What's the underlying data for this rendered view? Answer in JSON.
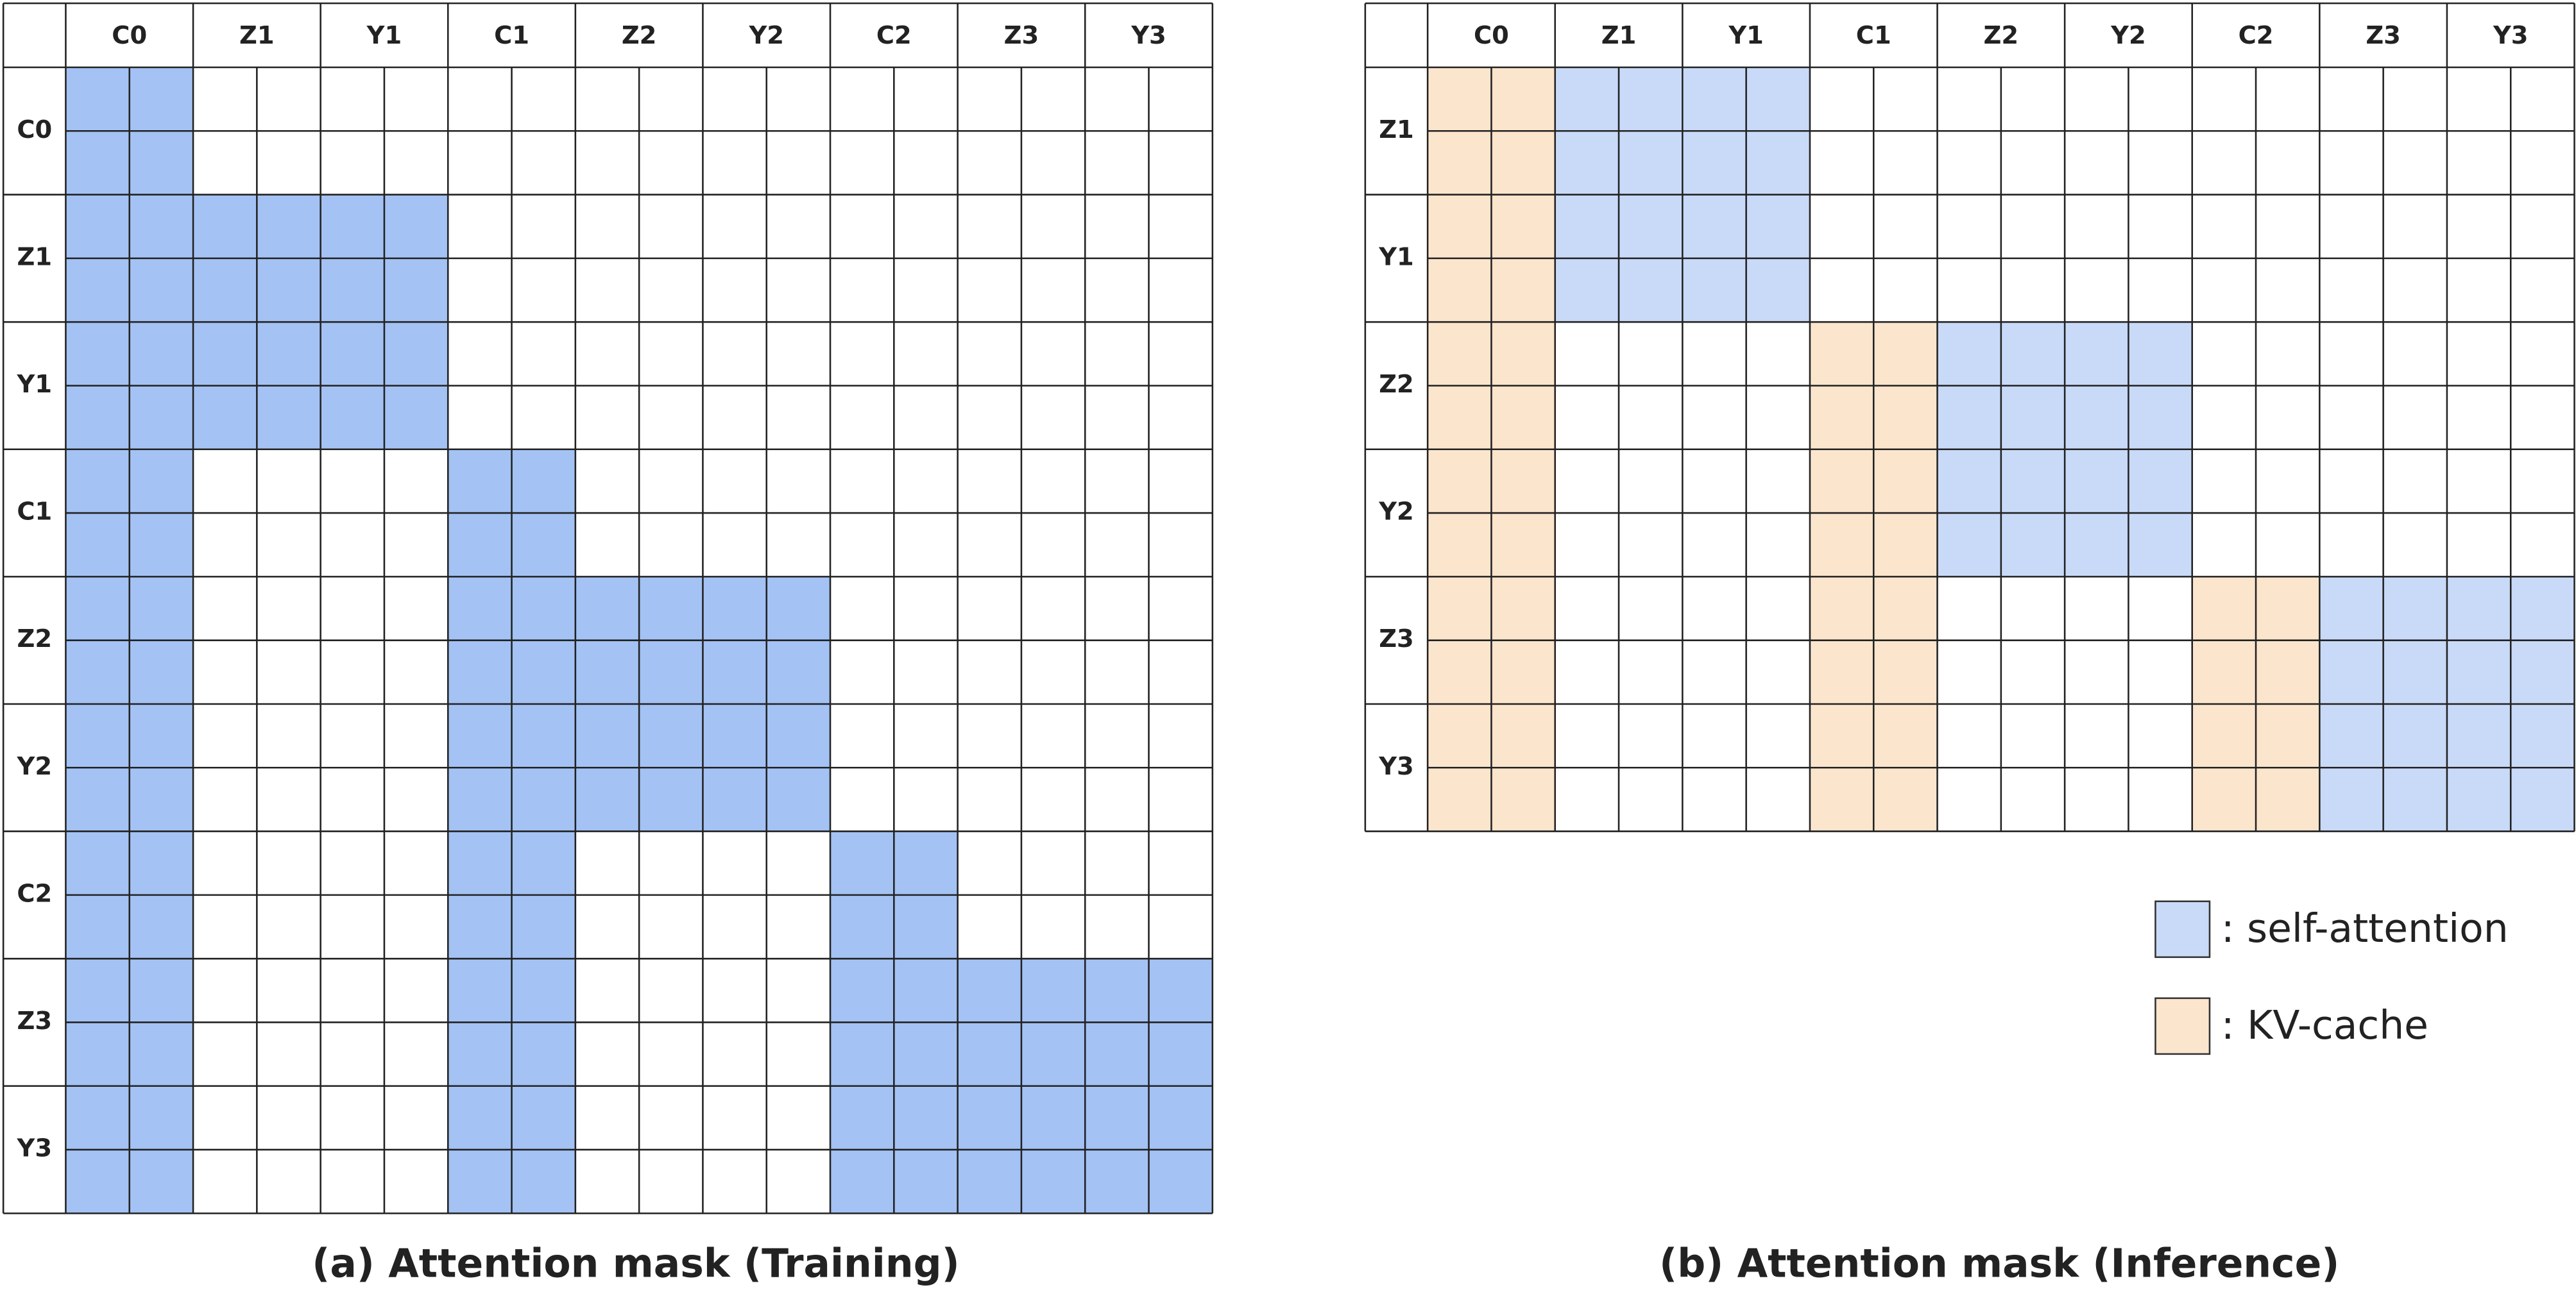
{
  "panel_a": {
    "columns": [
      "C0",
      "Z1",
      "Y1",
      "C1",
      "Z2",
      "Y2",
      "C2",
      "Z3",
      "Y3"
    ],
    "rows": [
      "C0",
      "Z1",
      "Y1",
      "C1",
      "Z2",
      "Y2",
      "C2",
      "Z3",
      "Y3"
    ],
    "caption": "(a) Attention mask (Training)"
  },
  "panel_b": {
    "columns": [
      "C0",
      "Z1",
      "Y1",
      "C1",
      "Z2",
      "Y2",
      "C2",
      "Z3",
      "Y3"
    ],
    "rows": [
      "Z1",
      "Y1",
      "Z2",
      "Y2",
      "Z3",
      "Y3"
    ],
    "caption": "(b) Attention mask (Inference)"
  },
  "legend": {
    "items": [
      ": self-attention",
      ": KV-cache"
    ]
  }
}
